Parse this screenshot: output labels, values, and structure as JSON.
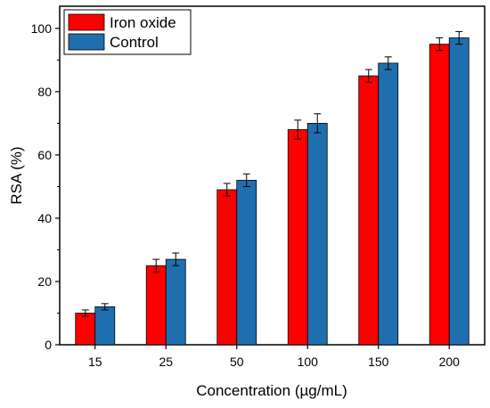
{
  "chart_data": {
    "type": "bar",
    "title": "",
    "xlabel": "Concentration (µg/mL)",
    "ylabel": "RSA (%)",
    "categories": [
      "15",
      "25",
      "50",
      "100",
      "150",
      "200"
    ],
    "ylim": [
      0,
      107
    ],
    "yticks": [
      0,
      20,
      40,
      60,
      80,
      100
    ],
    "grid": false,
    "legend_position": "top-left",
    "series": [
      {
        "name": "Iron oxide",
        "color": "#ff0000",
        "values": [
          10,
          25,
          49,
          68,
          85,
          95
        ],
        "errors": [
          1,
          2,
          2,
          3,
          2,
          2
        ]
      },
      {
        "name": "Control",
        "color": "#1f6fae",
        "values": [
          12,
          27,
          52,
          70,
          89,
          97
        ],
        "errors": [
          1,
          2,
          2,
          3,
          2,
          2
        ]
      }
    ]
  }
}
